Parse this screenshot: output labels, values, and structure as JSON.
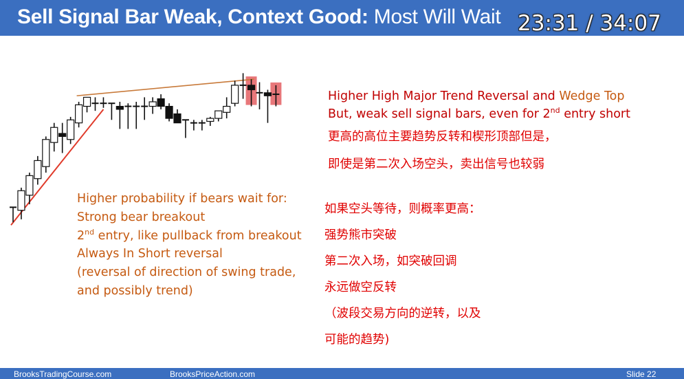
{
  "slide": {
    "title_bold": "Sell Signal Bar Weak, Context Good:",
    "title_rest": " Most Will Wait",
    "video_timer": "23:31 / 34:07"
  },
  "right_english": {
    "line1_a": "Higher High Major Trend Reversal and ",
    "line1_b": "Wedge Top",
    "line2_a": "But, weak sell signal bars, even for 2",
    "line2_sup": "nd",
    "line2_b": " entry short"
  },
  "right_chinese": {
    "line1": "更高的高位主要趋势反转和楔形顶部但是，",
    "line2": "即使是第二次入场空头，卖出信号也较弱"
  },
  "left_english": {
    "line1": "Higher probability if bears wait for:",
    "line2": "Strong bear breakout",
    "line3_a": "2",
    "line3_sup": "nd",
    "line3_b": " entry, like pullback from breakout",
    "line4": "Always In Short reversal",
    "line5": "(reversal of direction of swing trade,",
    "line6": "and possibly trend)"
  },
  "right_chinese_2": {
    "line1": "如果空头等待，则概率更高：",
    "line2": "强势熊市突破",
    "line3": "第二次入场，如突破回调",
    "line4": "永远做空反转",
    "line5": "（波段交易方向的逆转，以及",
    "line6": "可能的趋势)"
  },
  "footer": {
    "left_site": "BrooksTradingCourse.com",
    "center_site": "BrooksPriceAction.com",
    "slide_number": "Slide  22"
  },
  "colors": {
    "header_blue": "#3b6fc0",
    "trendline_red": "#e03a2a",
    "wedge_line_orange": "#c87a3a",
    "signal_highlight": "#e8777a"
  },
  "chart_data": {
    "type": "candlestick",
    "title": "",
    "annotations": [
      "bull trend line",
      "wedge top line",
      "two highlighted sell signal bars"
    ],
    "bars": [
      {
        "o": 44.0,
        "h": 44.0,
        "l": 34.0,
        "c": 44.0,
        "dir": "doji"
      },
      {
        "o": 42.0,
        "h": 57.0,
        "l": 36.0,
        "c": 55.0,
        "dir": "bull"
      },
      {
        "o": 52.0,
        "h": 67.0,
        "l": 46.0,
        "c": 65.0,
        "dir": "bull"
      },
      {
        "o": 63.0,
        "h": 78.0,
        "l": 59.0,
        "c": 75.0,
        "dir": "bull"
      },
      {
        "o": 71.0,
        "h": 91.0,
        "l": 67.0,
        "c": 89.0,
        "dir": "bull"
      },
      {
        "o": 87.0,
        "h": 100.0,
        "l": 81.0,
        "c": 97.0,
        "dir": "bull"
      },
      {
        "o": 93.0,
        "h": 100.0,
        "l": 80.0,
        "c": 91.0,
        "dir": "bear"
      },
      {
        "o": 89.0,
        "h": 104.0,
        "l": 86.0,
        "c": 102.0,
        "dir": "bull"
      },
      {
        "o": 100.0,
        "h": 114.0,
        "l": 97.0,
        "c": 112.0,
        "dir": "bull"
      },
      {
        "o": 111.0,
        "h": 117.0,
        "l": 107.0,
        "c": 117.0,
        "dir": "bull"
      },
      {
        "o": 113.0,
        "h": 117.0,
        "l": 108.0,
        "c": 113.0,
        "dir": "doji"
      },
      {
        "o": 113.0,
        "h": 117.0,
        "l": 110.0,
        "c": 113.0,
        "dir": "doji"
      },
      {
        "o": 113.0,
        "h": 113.0,
        "l": 102.0,
        "c": 113.0,
        "dir": "doji"
      },
      {
        "o": 111.0,
        "h": 114.0,
        "l": 96.0,
        "c": 109.0,
        "dir": "bear"
      },
      {
        "o": 111.0,
        "h": 113.0,
        "l": 96.0,
        "c": 111.0,
        "dir": "doji"
      },
      {
        "o": 111.0,
        "h": 114.0,
        "l": 96.0,
        "c": 111.0,
        "dir": "doji"
      },
      {
        "o": 111.0,
        "h": 117.0,
        "l": 102.0,
        "c": 111.0,
        "dir": "doji"
      },
      {
        "o": 111.0,
        "h": 117.0,
        "l": 106.0,
        "c": 114.0,
        "dir": "bull"
      },
      {
        "o": 116.0,
        "h": 119.0,
        "l": 109.0,
        "c": 111.0,
        "dir": "bear"
      },
      {
        "o": 111.0,
        "h": 113.0,
        "l": 101.0,
        "c": 103.0,
        "dir": "bear"
      },
      {
        "o": 106.0,
        "h": 109.0,
        "l": 100.0,
        "c": 100.0,
        "dir": "bear"
      },
      {
        "o": 102.0,
        "h": 102.0,
        "l": 90.0,
        "c": 100.0,
        "dir": "doji"
      },
      {
        "o": 100.0,
        "h": 102.0,
        "l": 95.0,
        "c": 100.0,
        "dir": "doji"
      },
      {
        "o": 100.0,
        "h": 102.0,
        "l": 95.0,
        "c": 100.0,
        "dir": "doji"
      },
      {
        "o": 101.0,
        "h": 104.0,
        "l": 98.0,
        "c": 103.0,
        "dir": "bull"
      },
      {
        "o": 103.0,
        "h": 108.0,
        "l": 101.0,
        "c": 108.0,
        "dir": "bull"
      },
      {
        "o": 107.0,
        "h": 117.0,
        "l": 103.0,
        "c": 111.0,
        "dir": "bull"
      },
      {
        "o": 113.0,
        "h": 128.0,
        "l": 111.0,
        "c": 125.0,
        "dir": "bull"
      },
      {
        "o": 125.0,
        "h": 133.0,
        "l": 116.0,
        "c": 125.0,
        "dir": "doji"
      },
      {
        "o": 125.0,
        "h": 129.0,
        "l": 111.0,
        "c": 122.0,
        "dir": "bear",
        "signal": true
      },
      {
        "o": 120.0,
        "h": 127.0,
        "l": 109.0,
        "c": 120.0,
        "dir": "doji"
      },
      {
        "o": 120.0,
        "h": 122.0,
        "l": 100.0,
        "c": 118.0,
        "dir": "bear"
      },
      {
        "o": 119.0,
        "h": 125.0,
        "l": 111.0,
        "c": 119.0,
        "dir": "doji",
        "signal": true
      }
    ],
    "trendline": {
      "from_bar": 0,
      "from_price": 34.0,
      "to_bar": 11,
      "to_price": 109.0
    },
    "wedge_line": {
      "from_bar": 8,
      "from_price": 118.0,
      "to_bar": 29,
      "to_price": 129.0
    },
    "ylim": [
      30,
      135
    ]
  }
}
